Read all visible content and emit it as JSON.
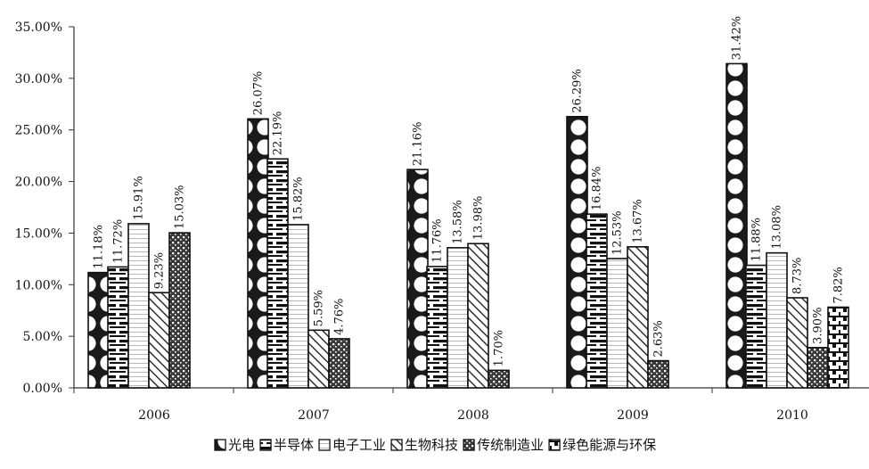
{
  "chart_data": {
    "type": "bar",
    "categories": [
      "2006",
      "2007",
      "2008",
      "2009",
      "2010"
    ],
    "series": [
      {
        "name": "光电",
        "pattern": "circles",
        "values": [
          11.18,
          26.07,
          21.16,
          26.29,
          31.42
        ],
        "labels": [
          "11.18%",
          "26.07%",
          "21.16%",
          "26.29%",
          "31.42%"
        ]
      },
      {
        "name": "半导体",
        "pattern": "hbars",
        "values": [
          11.72,
          22.19,
          11.76,
          16.84,
          11.88
        ],
        "labels": [
          "11.72%",
          "22.19%",
          "11.76%",
          "16.84%",
          "11.88%"
        ]
      },
      {
        "name": "电子工业",
        "pattern": "hlines",
        "values": [
          15.91,
          15.82,
          13.58,
          12.53,
          13.08
        ],
        "labels": [
          "15.91%",
          "15.82%",
          "13.58%",
          "12.53%",
          "13.08%"
        ]
      },
      {
        "name": "生物科技",
        "pattern": "diag",
        "values": [
          9.23,
          5.59,
          13.98,
          13.67,
          8.73
        ],
        "labels": [
          "9.23%",
          "5.59%",
          "13.98%",
          "13.67%",
          "8.73%"
        ]
      },
      {
        "name": "传统制造业",
        "pattern": "dots",
        "values": [
          15.03,
          4.76,
          1.7,
          2.63,
          3.9
        ],
        "labels": [
          "15.03%",
          "4.76%",
          "1.70%",
          "2.63%",
          "3.90%"
        ]
      },
      {
        "name": "绿色能源与环保",
        "pattern": "brick",
        "values": [
          null,
          null,
          null,
          null,
          7.82
        ],
        "labels": [
          "",
          "",
          "",
          "",
          "7.82%"
        ]
      }
    ],
    "yticks": [
      "0.00%",
      "5.00%",
      "10.00%",
      "15.00%",
      "20.00%",
      "25.00%",
      "30.00%",
      "35.00%"
    ],
    "ylim": [
      0,
      35
    ],
    "title": "",
    "xlabel": "",
    "ylabel": "",
    "grid": false,
    "legend_position": "bottom"
  }
}
